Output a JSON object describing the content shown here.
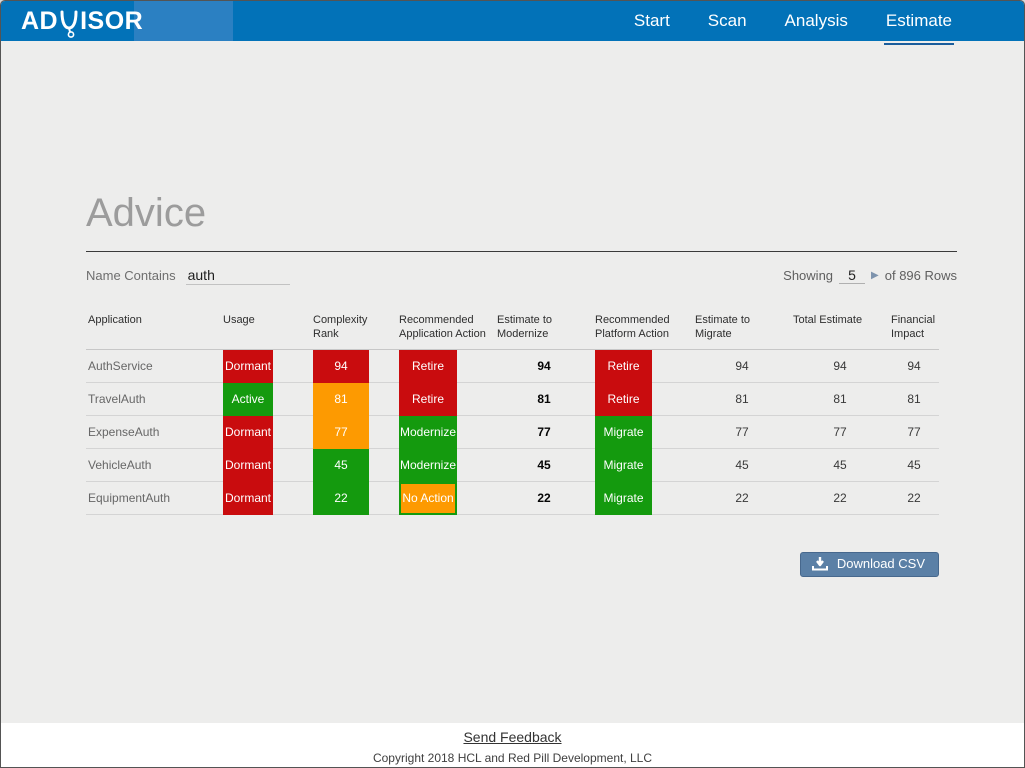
{
  "header": {
    "logo_prefix": "AD",
    "logo_suffix": "ISOR",
    "nav": [
      {
        "label": "Start",
        "active": false
      },
      {
        "label": "Scan",
        "active": false
      },
      {
        "label": "Analysis",
        "active": false
      },
      {
        "label": "Estimate",
        "active": true
      }
    ]
  },
  "page": {
    "title": "Advice",
    "filter_label": "Name Contains",
    "filter_value": "auth",
    "showing_label": "Showing",
    "showing_value": "5",
    "showing_suffix": "of 896 Rows"
  },
  "table": {
    "columns": [
      "Application",
      "Usage",
      "Complexity Rank",
      "Recommended Application Action",
      "Estimate to Modernize",
      "Recommended Platform Action",
      "Estimate to Migrate",
      "Total Estimate",
      "Financial Impact"
    ],
    "rows": [
      {
        "application": "AuthService",
        "usage": "Dormant",
        "usage_color": "red",
        "complexity": "94",
        "complexity_color": "red",
        "app_action": "Retire",
        "app_action_color": "red",
        "estimate_modernize": "94",
        "platform_action": "Retire",
        "platform_action_color": "red",
        "estimate_migrate": "94",
        "total_estimate": "94",
        "financial_impact": "94"
      },
      {
        "application": "TravelAuth",
        "usage": "Active",
        "usage_color": "green",
        "complexity": "81",
        "complexity_color": "orange",
        "app_action": "Retire",
        "app_action_color": "red",
        "estimate_modernize": "81",
        "platform_action": "Retire",
        "platform_action_color": "red",
        "estimate_migrate": "81",
        "total_estimate": "81",
        "financial_impact": "81"
      },
      {
        "application": "ExpenseAuth",
        "usage": "Dormant",
        "usage_color": "red",
        "complexity": "77",
        "complexity_color": "orange",
        "app_action": "Modernize",
        "app_action_color": "green",
        "estimate_modernize": "77",
        "platform_action": "Migrate",
        "platform_action_color": "green",
        "estimate_migrate": "77",
        "total_estimate": "77",
        "financial_impact": "77"
      },
      {
        "application": "VehicleAuth",
        "usage": "Dormant",
        "usage_color": "red",
        "complexity": "45",
        "complexity_color": "green",
        "app_action": "Modernize",
        "app_action_color": "green",
        "estimate_modernize": "45",
        "platform_action": "Migrate",
        "platform_action_color": "green",
        "estimate_migrate": "45",
        "total_estimate": "45",
        "financial_impact": "45"
      },
      {
        "application": "EquipmentAuth",
        "usage": "Dormant",
        "usage_color": "red",
        "complexity": "22",
        "complexity_color": "green",
        "app_action": "No Action",
        "app_action_color": "orange",
        "app_action_border": "green",
        "estimate_modernize": "22",
        "platform_action": "Migrate",
        "platform_action_color": "green",
        "estimate_migrate": "22",
        "total_estimate": "22",
        "financial_impact": "22"
      }
    ]
  },
  "actions": {
    "download_csv": "Download CSV"
  },
  "footer": {
    "feedback_link": "Send Feedback",
    "copyright": "Copyright 2018 HCL and Red Pill Development, LLC"
  },
  "colors": {
    "red": "#c90c0e",
    "green": "#149a0e",
    "orange": "#fd9a01",
    "header_blue": "#0272b8",
    "accent_blue": "#1a5d9c",
    "button_blue": "#5b80a6"
  }
}
